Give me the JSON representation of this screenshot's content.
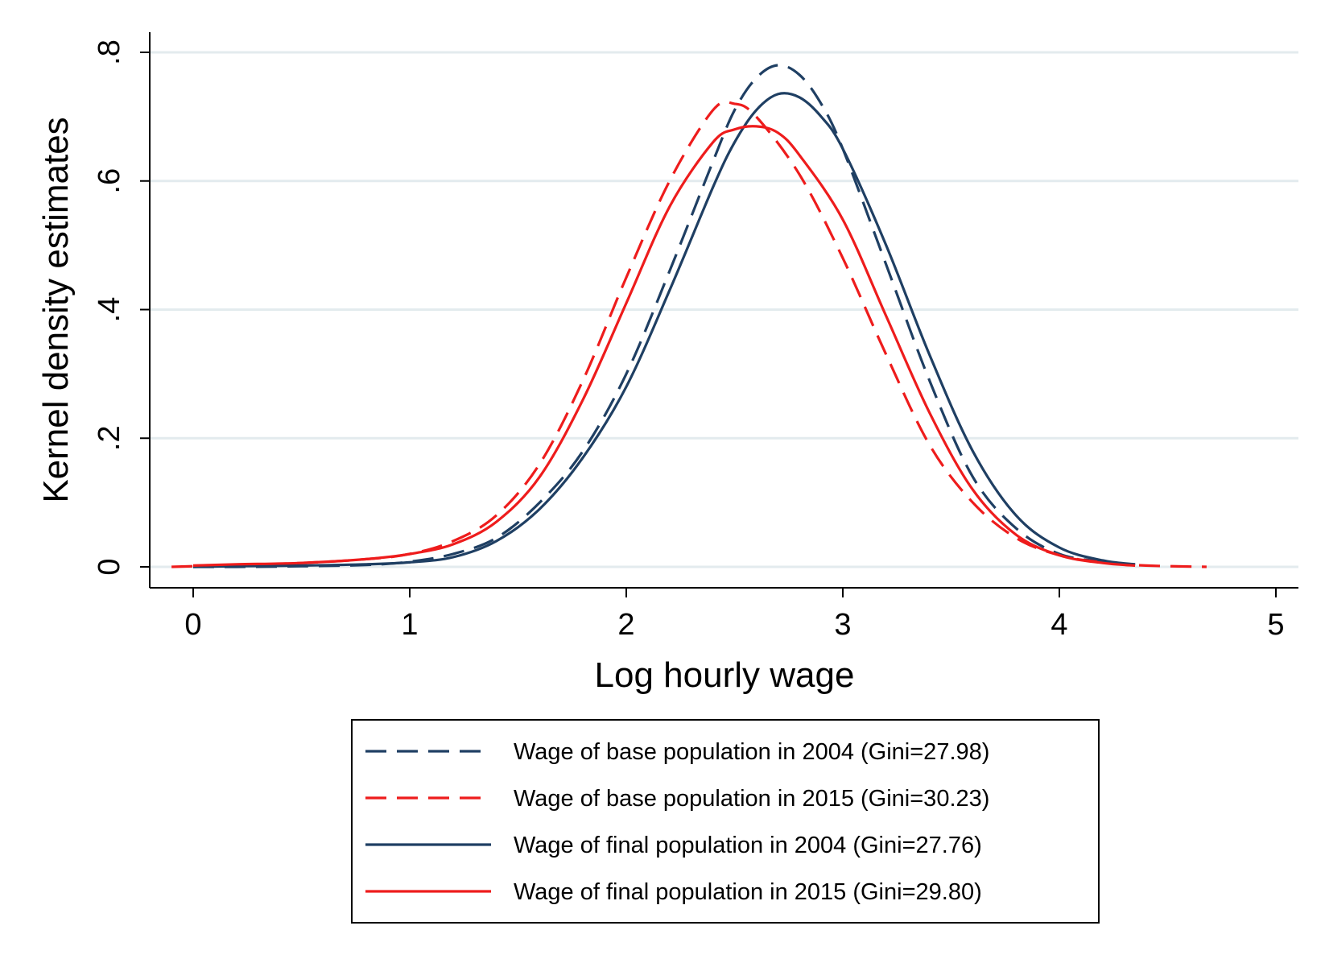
{
  "chart_data": {
    "type": "line",
    "xlabel": "Log hourly wage",
    "ylabel": "Kernel density estimates",
    "xlim": [
      -0.2,
      5.1
    ],
    "ylim": [
      -0.033,
      0.835
    ],
    "x_ticks": [
      0,
      1,
      2,
      3,
      4,
      5
    ],
    "x_tick_labels": [
      "0",
      "1",
      "2",
      "3",
      "4",
      "5"
    ],
    "y_ticks": [
      0,
      0.2,
      0.4,
      0.6,
      0.8
    ],
    "y_tick_labels": [
      "0",
      ".2",
      ".4",
      ".6",
      ".8"
    ],
    "grid": "horizontal",
    "legend_position": "bottom",
    "series": [
      {
        "name": "Wage of base population in 2004 (Gini=27.98)",
        "color": "#1f3f63",
        "dash": "dashed",
        "x": [
          0.0,
          0.2,
          0.5,
          0.8,
          1.0,
          1.2,
          1.4,
          1.6,
          1.8,
          2.0,
          2.2,
          2.4,
          2.5,
          2.6,
          2.7,
          2.8,
          2.9,
          3.0,
          3.2,
          3.4,
          3.6,
          3.8,
          4.0,
          4.2,
          4.35
        ],
        "y": [
          0.0,
          0.0,
          0.001,
          0.003,
          0.008,
          0.02,
          0.045,
          0.1,
          0.18,
          0.3,
          0.46,
          0.63,
          0.71,
          0.76,
          0.78,
          0.765,
          0.72,
          0.65,
          0.47,
          0.29,
          0.14,
          0.06,
          0.02,
          0.008,
          0.003
        ]
      },
      {
        "name": "Wage of base population in 2015 (Gini=30.23)",
        "color": "#ee1c1c",
        "dash": "dashed",
        "x": [
          -0.1,
          0.2,
          0.5,
          0.8,
          1.0,
          1.2,
          1.4,
          1.6,
          1.8,
          2.0,
          2.2,
          2.4,
          2.5,
          2.6,
          2.8,
          3.0,
          3.2,
          3.4,
          3.6,
          3.8,
          4.0,
          4.2,
          4.4,
          4.68
        ],
        "y": [
          0.0,
          0.003,
          0.006,
          0.012,
          0.02,
          0.04,
          0.08,
          0.16,
          0.29,
          0.45,
          0.6,
          0.71,
          0.72,
          0.7,
          0.61,
          0.48,
          0.33,
          0.19,
          0.1,
          0.045,
          0.018,
          0.007,
          0.002,
          0.0
        ]
      },
      {
        "name": "Wage of final population in 2004 (Gini=27.76)",
        "color": "#1f3f63",
        "dash": "solid",
        "x": [
          0.0,
          0.2,
          0.5,
          0.8,
          1.0,
          1.2,
          1.4,
          1.6,
          1.8,
          2.0,
          2.2,
          2.4,
          2.5,
          2.6,
          2.7,
          2.8,
          2.9,
          3.0,
          3.2,
          3.4,
          3.6,
          3.8,
          4.0,
          4.2,
          4.35
        ],
        "y": [
          0.0,
          0.001,
          0.002,
          0.004,
          0.007,
          0.015,
          0.04,
          0.09,
          0.17,
          0.28,
          0.43,
          0.59,
          0.66,
          0.71,
          0.735,
          0.73,
          0.7,
          0.65,
          0.5,
          0.33,
          0.18,
          0.08,
          0.03,
          0.01,
          0.004
        ]
      },
      {
        "name": "Wage of final population in 2015 (Gini=29.80)",
        "color": "#ee1c1c",
        "dash": "solid",
        "x": [
          0.0,
          0.2,
          0.5,
          0.8,
          1.0,
          1.2,
          1.4,
          1.6,
          1.8,
          2.0,
          2.2,
          2.4,
          2.5,
          2.6,
          2.7,
          2.8,
          3.0,
          3.2,
          3.4,
          3.6,
          3.8,
          4.0,
          4.2,
          4.35
        ],
        "y": [
          0.002,
          0.004,
          0.006,
          0.012,
          0.02,
          0.035,
          0.07,
          0.14,
          0.26,
          0.41,
          0.56,
          0.66,
          0.68,
          0.685,
          0.675,
          0.64,
          0.54,
          0.39,
          0.24,
          0.12,
          0.05,
          0.018,
          0.006,
          0.002
        ]
      }
    ]
  }
}
